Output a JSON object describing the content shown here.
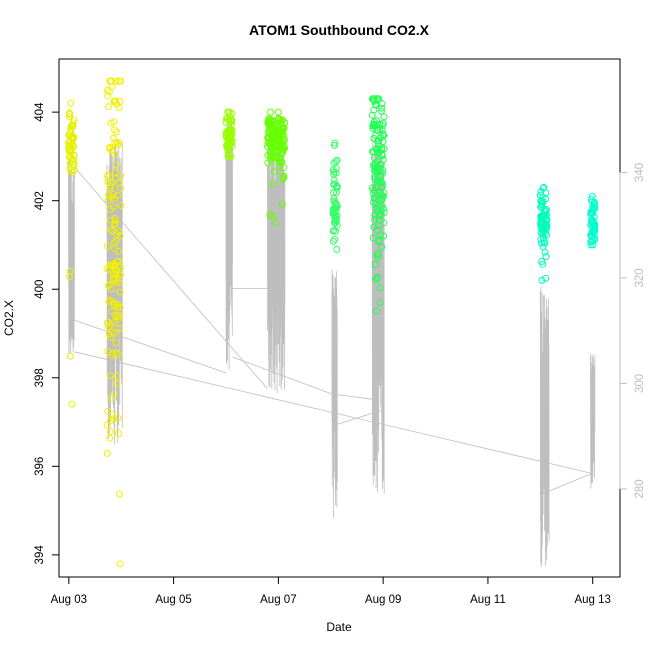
{
  "chart_data": {
    "type": "scatter",
    "title": "ATOM1 Southbound CO2.X",
    "xlabel": "Date",
    "ylabel": "CO2.X",
    "left_axis": {
      "ylim": [
        393.5,
        405.2
      ],
      "ticks": [
        394,
        396,
        398,
        400,
        402,
        404
      ]
    },
    "right_axis": {
      "ylim": [
        263.3,
        361.5
      ],
      "ticks": [
        280,
        300,
        320,
        340
      ],
      "color": "#bebebe"
    },
    "x_axis": {
      "xlim": [
        "2023-08-02T19:30",
        "2023-08-13T12:30"
      ],
      "ticks": [
        {
          "date": "2023-08-03",
          "label": "Aug 03"
        },
        {
          "date": "2023-08-05",
          "label": "Aug 05"
        },
        {
          "date": "2023-08-07",
          "label": "Aug 07"
        },
        {
          "date": "2023-08-09",
          "label": "Aug 09"
        },
        {
          "date": "2023-08-11",
          "label": "Aug 11"
        },
        {
          "date": "2023-08-13",
          "label": "Aug 13"
        }
      ]
    },
    "grid": false,
    "legend": "none",
    "series": [
      {
        "kind": "points",
        "axis": "left",
        "clusters": [
          {
            "start": "2023-08-02T23:50",
            "end": "2023-08-03T02:30",
            "n": 60,
            "ymin": 397.4,
            "ymax": 404.2,
            "center": 403.3,
            "spread": 0.35,
            "color": "#e6f000"
          },
          {
            "start": "2023-08-03T17:30",
            "end": "2023-08-03T23:50",
            "n": 140,
            "ymin": 393.8,
            "ymax": 404.7,
            "center": 401.0,
            "spread": 2.2,
            "color": "#f0f000"
          },
          {
            "start": "2023-08-06T00:00",
            "end": "2023-08-06T03:00",
            "n": 60,
            "ymin": 403.0,
            "ymax": 404.0,
            "center": 403.5,
            "spread": 0.3,
            "color": "#99ff00"
          },
          {
            "start": "2023-08-06T19:00",
            "end": "2023-08-07T03:00",
            "n": 140,
            "ymin": 401.5,
            "ymax": 404.0,
            "center": 403.4,
            "spread": 0.3,
            "color": "#66ff00"
          },
          {
            "start": "2023-08-08T01:00",
            "end": "2023-08-08T03:00",
            "n": 50,
            "ymin": 400.9,
            "ymax": 403.3,
            "center": 401.8,
            "spread": 0.5,
            "color": "#33ff66"
          },
          {
            "start": "2023-08-08T19:00",
            "end": "2023-08-09T00:30",
            "n": 140,
            "ymin": 399.5,
            "ymax": 404.3,
            "center": 402.6,
            "spread": 1.0,
            "color": "#22ff55"
          },
          {
            "start": "2023-08-12T00:00",
            "end": "2023-08-12T03:00",
            "n": 80,
            "ymin": 400.2,
            "ymax": 402.3,
            "center": 401.5,
            "spread": 0.3,
            "color": "#00ffbb"
          },
          {
            "start": "2023-08-12T23:00",
            "end": "2023-08-13T01:00",
            "n": 50,
            "ymin": 401.0,
            "ymax": 402.1,
            "center": 401.5,
            "spread": 0.25,
            "color": "#00ffcc"
          }
        ]
      },
      {
        "kind": "trace",
        "axis": "right",
        "color": "#bebebe",
        "segments": [
          {
            "start": "2023-08-02T23:50",
            "end": "2023-08-03T02:30",
            "n": 45,
            "low": 305,
            "high": 343
          },
          {
            "start": "2023-08-03T17:30",
            "end": "2023-08-04T00:30",
            "n": 110,
            "low": 288,
            "high": 346
          },
          {
            "start": "2023-08-06T00:00",
            "end": "2023-08-06T03:00",
            "n": 50,
            "low": 302,
            "high": 352
          },
          {
            "start": "2023-08-06T19:00",
            "end": "2023-08-07T03:00",
            "n": 110,
            "low": 298,
            "high": 349
          },
          {
            "start": "2023-08-08T00:30",
            "end": "2023-08-08T03:00",
            "n": 40,
            "low": 273,
            "high": 322
          },
          {
            "start": "2023-08-08T19:00",
            "end": "2023-08-09T00:30",
            "n": 110,
            "low": 279,
            "high": 348
          },
          {
            "start": "2023-08-12T00:00",
            "end": "2023-08-12T04:00",
            "n": 60,
            "low": 264,
            "high": 319
          },
          {
            "start": "2023-08-12T23:00",
            "end": "2023-08-13T01:00",
            "n": 35,
            "low": 280,
            "high": 307
          }
        ],
        "connectors": [
          [
            [
              "2023-08-03T02:30",
              341
            ],
            [
              "2023-08-03T02:30",
              312
            ],
            [
              "2023-08-06T00:00",
              302
            ]
          ],
          [
            [
              "2023-08-03T02:30",
              341
            ],
            [
              "2023-08-06T19:00",
              299
            ]
          ],
          [
            [
              "2023-08-06T03:00",
              318
            ],
            [
              "2023-08-07T00:30",
              318
            ]
          ],
          [
            [
              "2023-08-06T03:00",
              305
            ],
            [
              "2023-08-08T00:30",
              298
            ]
          ],
          [
            [
              "2023-08-08T00:30",
              298
            ],
            [
              "2023-08-08T19:00",
              297
            ]
          ],
          [
            [
              "2023-08-08T01:00",
              292
            ],
            [
              "2023-08-09T00:00",
              295
            ]
          ],
          [
            [
              "2023-08-03T02:30",
              306
            ],
            [
              "2023-08-12T23:00",
              283
            ]
          ],
          [
            [
              "2023-08-12T00:30",
              279
            ],
            [
              "2023-08-13T00:00",
              283
            ]
          ]
        ]
      }
    ]
  }
}
